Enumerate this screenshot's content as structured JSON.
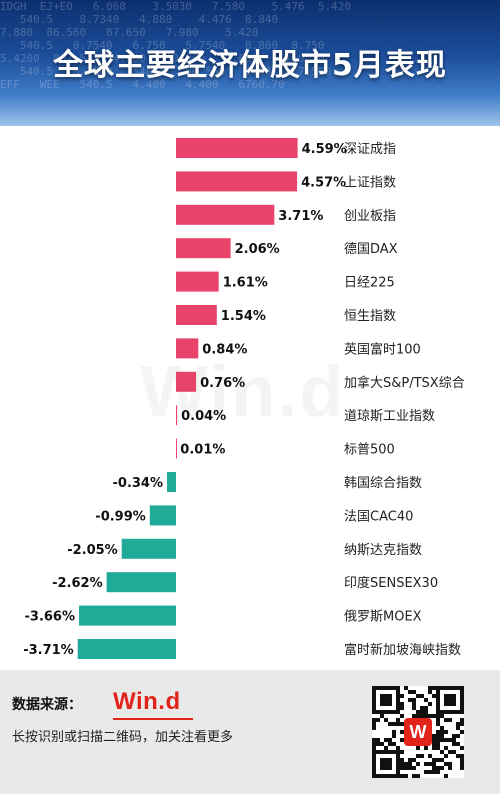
{
  "title": "全球主要经济体股市5月表现",
  "colors": {
    "positive": "#e8436a",
    "negative": "#1fab97",
    "header": "#1d4f9c",
    "logo": "#e2231a"
  },
  "chart_data": {
    "type": "bar",
    "orientation": "horizontal",
    "unit": "%",
    "categories": [
      "深证成指",
      "上证指数",
      "创业板指",
      "德国DAX",
      "日经225",
      "恒生指数",
      "英国富时100",
      "加拿大S&P/TSX综合",
      "道琼斯工业指数",
      "标普500",
      "韩国综合指数",
      "法国CAC40",
      "纳斯达克指数",
      "印度SENSEX30",
      "俄罗斯MOEX",
      "富时新加坡海峡指数"
    ],
    "values": [
      4.59,
      4.57,
      3.71,
      2.06,
      1.61,
      1.54,
      0.84,
      0.76,
      0.04,
      0.01,
      -0.34,
      -0.99,
      -2.05,
      -2.62,
      -3.66,
      -3.71
    ],
    "labels": [
      "4.59%",
      "4.57%",
      "3.71%",
      "2.06%",
      "1.61%",
      "1.54%",
      "0.84%",
      "0.76%",
      "0.04%",
      "0.01%",
      "-0.34%",
      "-0.99%",
      "-2.05%",
      "-2.62%",
      "-3.66%",
      "-3.71%"
    ],
    "grid": false,
    "legend": "none"
  },
  "footer": {
    "source_label": "数据来源：",
    "logo": "Win.d",
    "scan_text": "长按识别或扫描二维码，加关注看更多",
    "qr_logo": "W"
  },
  "watermark": "Win.d",
  "banner_ticker": "IDGH  EJ+EO   6.068    3.5030   7.580    5.476  5.420\n   540.5    8.7340   4.880    4.476  8.840\n7.880  86.560   87.650   7.980    5.420\n   540.5   0.7540   6.750   5.7540   8.800  8.750\n5.4200  807.5    4.080    0.960   0.650   6760.70\n   540.5   0.7540   540.5   86.560   0.607   7.580\nEFF   WEE   540.5   4.400   4.400   6760.70"
}
